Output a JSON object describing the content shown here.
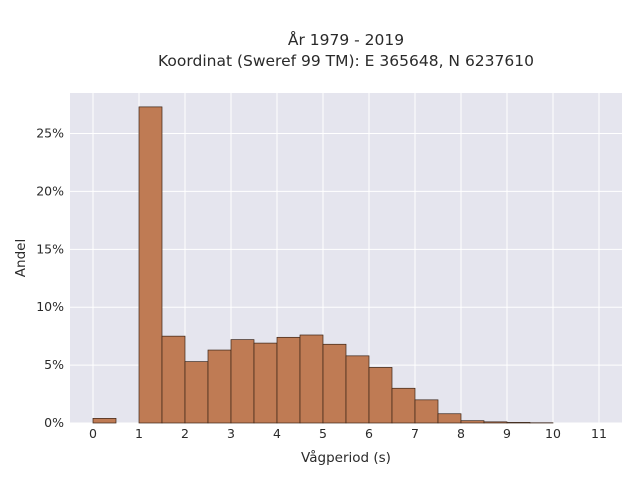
{
  "chart_data": {
    "type": "bar",
    "title": "År 1979 - 2019",
    "subtitle": "Koordinat (Sweref 99 TM): E 365648, N 6237610",
    "xlabel": "Vågperiod (s)",
    "ylabel": "Andel",
    "bin_width": 0.5,
    "bins": [
      {
        "x0": 0.0,
        "value": 0.4
      },
      {
        "x0": 0.5,
        "value": 0.0
      },
      {
        "x0": 1.0,
        "value": 27.3
      },
      {
        "x0": 1.5,
        "value": 7.5
      },
      {
        "x0": 2.0,
        "value": 5.3
      },
      {
        "x0": 2.5,
        "value": 6.3
      },
      {
        "x0": 3.0,
        "value": 7.2
      },
      {
        "x0": 3.5,
        "value": 6.9
      },
      {
        "x0": 4.0,
        "value": 7.4
      },
      {
        "x0": 4.5,
        "value": 7.6
      },
      {
        "x0": 5.0,
        "value": 6.8
      },
      {
        "x0": 5.5,
        "value": 5.8
      },
      {
        "x0": 6.0,
        "value": 4.8
      },
      {
        "x0": 6.5,
        "value": 3.0
      },
      {
        "x0": 7.0,
        "value": 2.0
      },
      {
        "x0": 7.5,
        "value": 0.8
      },
      {
        "x0": 8.0,
        "value": 0.2
      },
      {
        "x0": 8.5,
        "value": 0.1
      },
      {
        "x0": 9.0,
        "value": 0.05
      },
      {
        "x0": 9.5,
        "value": 0.02
      }
    ],
    "xlim": [
      -0.5,
      11.5
    ],
    "ylim": [
      0,
      28.5
    ],
    "x_ticks": [
      0,
      1,
      2,
      3,
      4,
      5,
      6,
      7,
      8,
      9,
      10,
      11
    ],
    "y_ticks": [
      0,
      5,
      10,
      15,
      20,
      25
    ],
    "y_tick_suffix": "%",
    "grid": true,
    "colors": {
      "bar_fill": "#bf7b54",
      "bar_stroke": "#3b2416",
      "plot_background": "#e5e5ee",
      "grid": "#ffffff"
    }
  }
}
